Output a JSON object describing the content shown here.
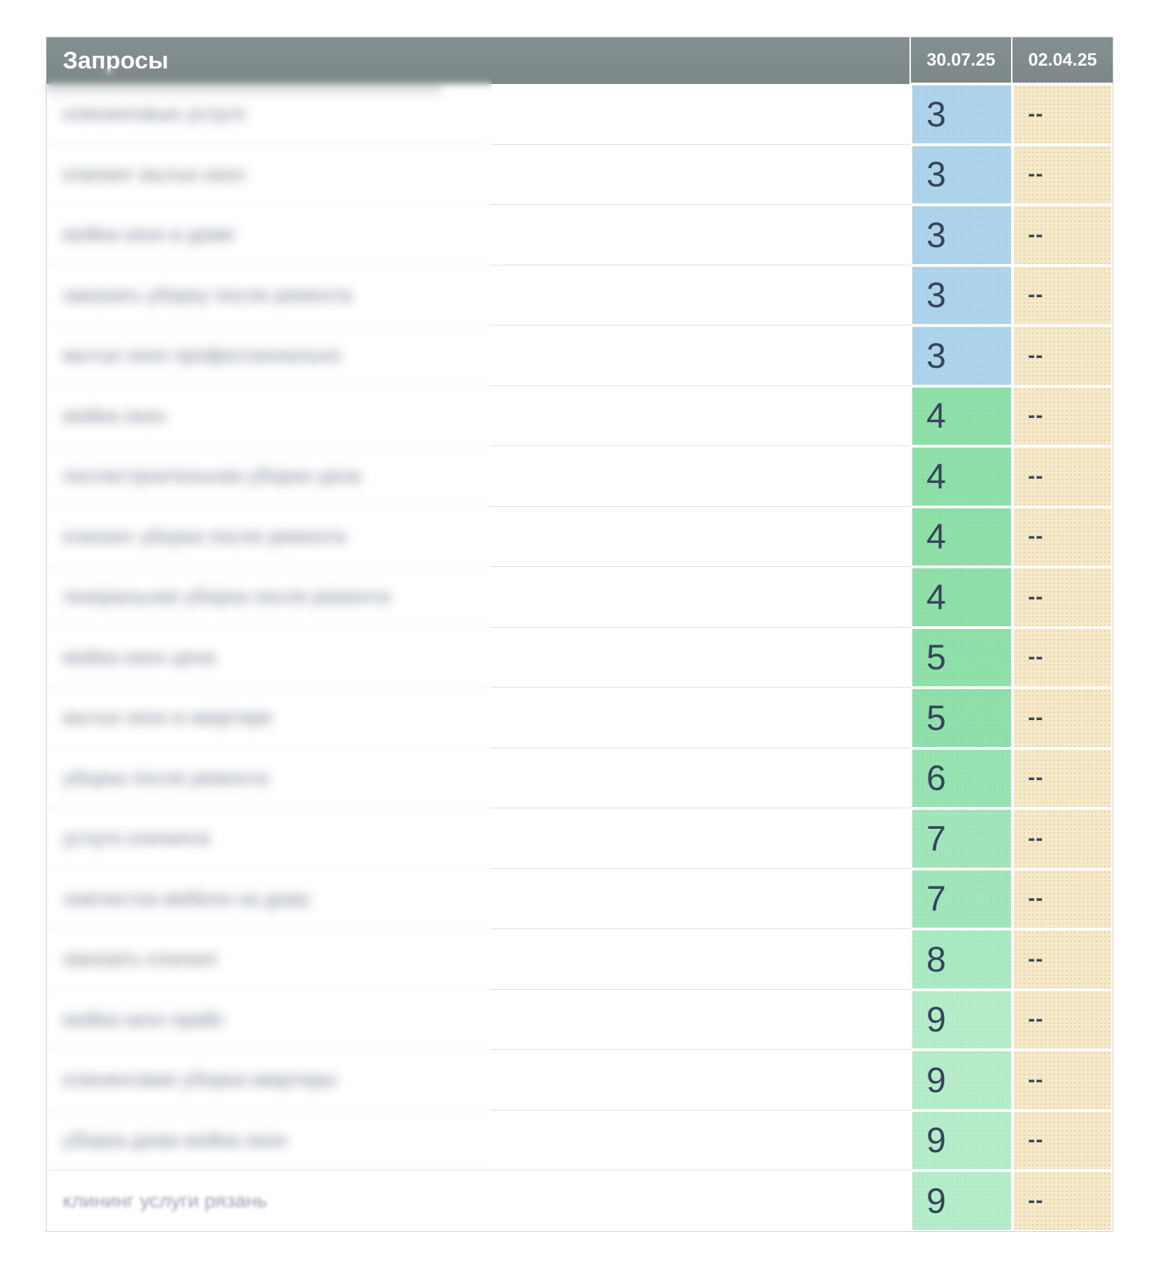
{
  "table": {
    "header": {
      "queries_label": "Запросы",
      "date_columns": [
        "30.07.25",
        "02.04.25"
      ]
    },
    "rows": [
      {
        "query_masked": "клининговые услуги",
        "rank": "3",
        "prev": "--"
      },
      {
        "query_masked": "клининг мытье окон",
        "rank": "3",
        "prev": "--"
      },
      {
        "query_masked": "мойка окон в доме",
        "rank": "3",
        "prev": "--"
      },
      {
        "query_masked": "заказать уборку после ремонта",
        "rank": "3",
        "prev": "--"
      },
      {
        "query_masked": "мытье окон профессионально",
        "rank": "3",
        "prev": "--"
      },
      {
        "query_masked": "мойка окон",
        "rank": "4",
        "prev": "--"
      },
      {
        "query_masked": "послестроительная уборка цена",
        "rank": "4",
        "prev": "--"
      },
      {
        "query_masked": "клининг уборка после ремонта",
        "rank": "4",
        "prev": "--"
      },
      {
        "query_masked": "генеральная уборка после ремонта",
        "rank": "4",
        "prev": "--"
      },
      {
        "query_masked": "мойка окон цена",
        "rank": "5",
        "prev": "--"
      },
      {
        "query_masked": "мытье окон в квартире",
        "rank": "5",
        "prev": "--"
      },
      {
        "query_masked": "уборка после ремонта",
        "rank": "6",
        "prev": "--"
      },
      {
        "query_masked": "услуги клининга",
        "rank": "7",
        "prev": "--"
      },
      {
        "query_masked": "химчистка мебели на дому",
        "rank": "7",
        "prev": "--"
      },
      {
        "query_masked": "заказать клининг",
        "rank": "8",
        "prev": "--"
      },
      {
        "query_masked": "мойка окон прайс",
        "rank": "9",
        "prev": "--"
      },
      {
        "query_masked": "клининговая уборка квартиры",
        "rank": "9",
        "prev": "--"
      },
      {
        "query_masked": "уборка дома мойка окон",
        "rank": "9",
        "prev": "--"
      },
      {
        "query_masked": "клининг услуги рязань",
        "rank": "9",
        "prev": "--",
        "light_blur": true
      }
    ]
  },
  "colors": {
    "header_bg": "#7F8B8D",
    "header_text": "#FFFFFF",
    "rank_text": "#36455A",
    "no_data_bg": "#F5E9C8",
    "rank_bg": {
      "3": "#AED4EC",
      "4": "#8FDFA9",
      "5": "#8FE0AB",
      "6": "#97E3B2",
      "7": "#A0E6BA",
      "8": "#A9EAC3",
      "9": "#B5EDCA"
    }
  }
}
